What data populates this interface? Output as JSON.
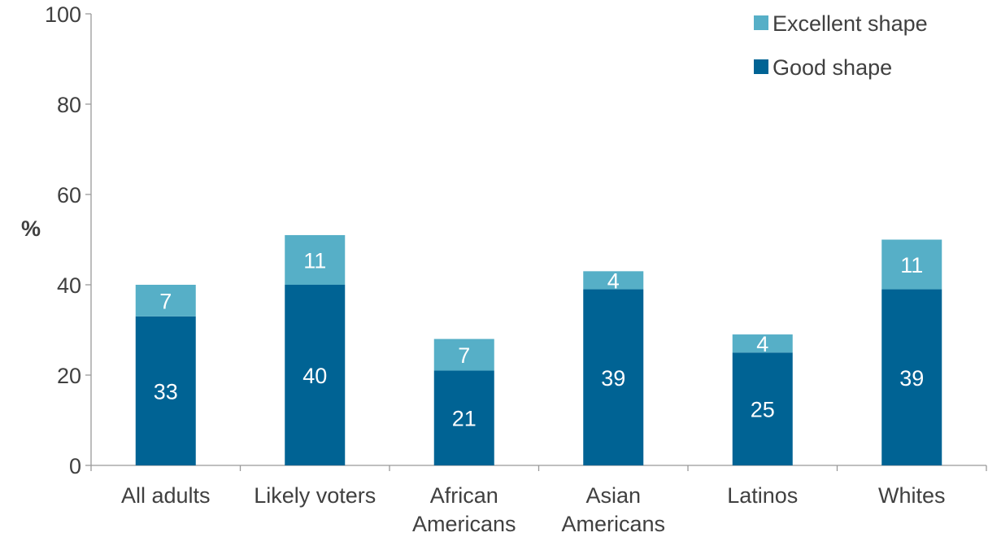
{
  "chart_data": {
    "type": "bar",
    "stacked": true,
    "categories": [
      [
        "All adults"
      ],
      [
        "Likely voters"
      ],
      [
        "African",
        "Americans"
      ],
      [
        "Asian",
        "Americans"
      ],
      [
        "Latinos"
      ],
      [
        "Whites"
      ]
    ],
    "series": [
      {
        "name": "Good shape",
        "values": [
          33,
          40,
          21,
          39,
          25,
          39
        ],
        "color": "#006394"
      },
      {
        "name": "Excellent shape",
        "values": [
          7,
          11,
          7,
          4,
          4,
          11
        ],
        "color": "#56afc7"
      }
    ],
    "legend_order": [
      "Excellent shape",
      "Good shape"
    ],
    "legend_position": "top-right",
    "ylabel": "%",
    "xlabel": "",
    "ylim": [
      0,
      100
    ],
    "yticks": [
      0,
      20,
      40,
      60,
      80,
      100
    ],
    "grid": false
  }
}
